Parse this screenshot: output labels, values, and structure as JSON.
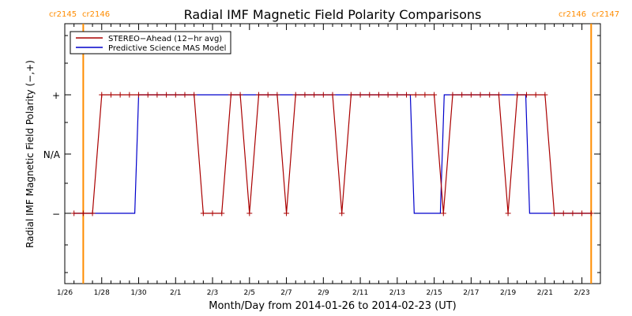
{
  "chart_data": {
    "type": "line",
    "title": "Radial IMF Magnetic Field Polarity Comparisons",
    "xlabel": "Month/Day from 2014-01-26 to 2014-02-23 (UT)",
    "ylabel": "Radial IMF Magnetic Field Polarity (−,+)",
    "xlim": [
      "2014-01-26",
      "2014-02-24"
    ],
    "x_tick_labels": [
      "1/26",
      "1/28",
      "1/30",
      "2/1",
      "2/3",
      "2/5",
      "2/7",
      "2/9",
      "2/11",
      "2/13",
      "2/15",
      "2/17",
      "2/19",
      "2/21",
      "2/23"
    ],
    "y_categories": [
      "−",
      "N/A",
      "+"
    ],
    "grid": false,
    "legend_position": "top-left",
    "colors": {
      "stereo": "#aa0000",
      "model": "#0000cc",
      "rotation_marker": "#ff8c00"
    },
    "carrington_markers": [
      {
        "x": "2014-01-27T00:00",
        "left_label": "cr2145",
        "right_label": "cr2146"
      },
      {
        "x": "2014-02-23T12:00",
        "left_label": "cr2146",
        "right_label": "cr2147"
      }
    ],
    "series": [
      {
        "name": "STEREO−Ahead (12−hr avg)",
        "marker": "plus",
        "points": [
          [
            "2014-01-26T12:00",
            "−"
          ],
          [
            "2014-01-27T00:00",
            "−"
          ],
          [
            "2014-01-27T12:00",
            "−"
          ],
          [
            "2014-01-28T00:00",
            "+"
          ],
          [
            "2014-01-28T12:00",
            "+"
          ],
          [
            "2014-01-29T00:00",
            "+"
          ],
          [
            "2014-01-29T12:00",
            "+"
          ],
          [
            "2014-01-30T00:00",
            "+"
          ],
          [
            "2014-01-30T12:00",
            "+"
          ],
          [
            "2014-01-31T00:00",
            "+"
          ],
          [
            "2014-01-31T12:00",
            "+"
          ],
          [
            "2014-02-01T00:00",
            "+"
          ],
          [
            "2014-02-01T12:00",
            "+"
          ],
          [
            "2014-02-02T00:00",
            "+"
          ],
          [
            "2014-02-02T12:00",
            "−"
          ],
          [
            "2014-02-03T00:00",
            "−"
          ],
          [
            "2014-02-03T12:00",
            "−"
          ],
          [
            "2014-02-04T00:00",
            "+"
          ],
          [
            "2014-02-04T12:00",
            "+"
          ],
          [
            "2014-02-05T00:00",
            "−"
          ],
          [
            "2014-02-05T12:00",
            "+"
          ],
          [
            "2014-02-06T00:00",
            "+"
          ],
          [
            "2014-02-06T12:00",
            "+"
          ],
          [
            "2014-02-07T00:00",
            "−"
          ],
          [
            "2014-02-07T12:00",
            "+"
          ],
          [
            "2014-02-08T00:00",
            "+"
          ],
          [
            "2014-02-08T12:00",
            "+"
          ],
          [
            "2014-02-09T00:00",
            "+"
          ],
          [
            "2014-02-09T12:00",
            "+"
          ],
          [
            "2014-02-10T00:00",
            "−"
          ],
          [
            "2014-02-10T12:00",
            "+"
          ],
          [
            "2014-02-11T00:00",
            "+"
          ],
          [
            "2014-02-11T12:00",
            "+"
          ],
          [
            "2014-02-12T00:00",
            "+"
          ],
          [
            "2014-02-12T12:00",
            "+"
          ],
          [
            "2014-02-13T00:00",
            "+"
          ],
          [
            "2014-02-13T12:00",
            "+"
          ],
          [
            "2014-02-14T00:00",
            "+"
          ],
          [
            "2014-02-14T12:00",
            "+"
          ],
          [
            "2014-02-15T00:00",
            "+"
          ],
          [
            "2014-02-15T12:00",
            "−"
          ],
          [
            "2014-02-16T00:00",
            "+"
          ],
          [
            "2014-02-16T12:00",
            "+"
          ],
          [
            "2014-02-17T00:00",
            "+"
          ],
          [
            "2014-02-17T12:00",
            "+"
          ],
          [
            "2014-02-18T00:00",
            "+"
          ],
          [
            "2014-02-18T12:00",
            "+"
          ],
          [
            "2014-02-19T00:00",
            "−"
          ],
          [
            "2014-02-19T12:00",
            "+"
          ],
          [
            "2014-02-20T00:00",
            "+"
          ],
          [
            "2014-02-20T12:00",
            "+"
          ],
          [
            "2014-02-21T00:00",
            "+"
          ],
          [
            "2014-02-21T12:00",
            "−"
          ],
          [
            "2014-02-22T00:00",
            "−"
          ],
          [
            "2014-02-22T12:00",
            "−"
          ],
          [
            "2014-02-23T00:00",
            "−"
          ],
          [
            "2014-02-23T12:00",
            "−"
          ]
        ]
      },
      {
        "name": "Predictive Science MAS Model",
        "marker": "none",
        "points": [
          [
            "2014-01-26T12:00",
            "−"
          ],
          [
            "2014-01-29T19:00",
            "−"
          ],
          [
            "2014-01-30T00:00",
            "+"
          ],
          [
            "2014-02-13T17:00",
            "+"
          ],
          [
            "2014-02-13T22:00",
            "−"
          ],
          [
            "2014-02-15T08:00",
            "−"
          ],
          [
            "2014-02-15T13:00",
            "+"
          ],
          [
            "2014-02-19T23:00",
            "+"
          ],
          [
            "2014-02-20T04:00",
            "−"
          ],
          [
            "2014-02-23T12:00",
            "−"
          ]
        ]
      }
    ]
  }
}
